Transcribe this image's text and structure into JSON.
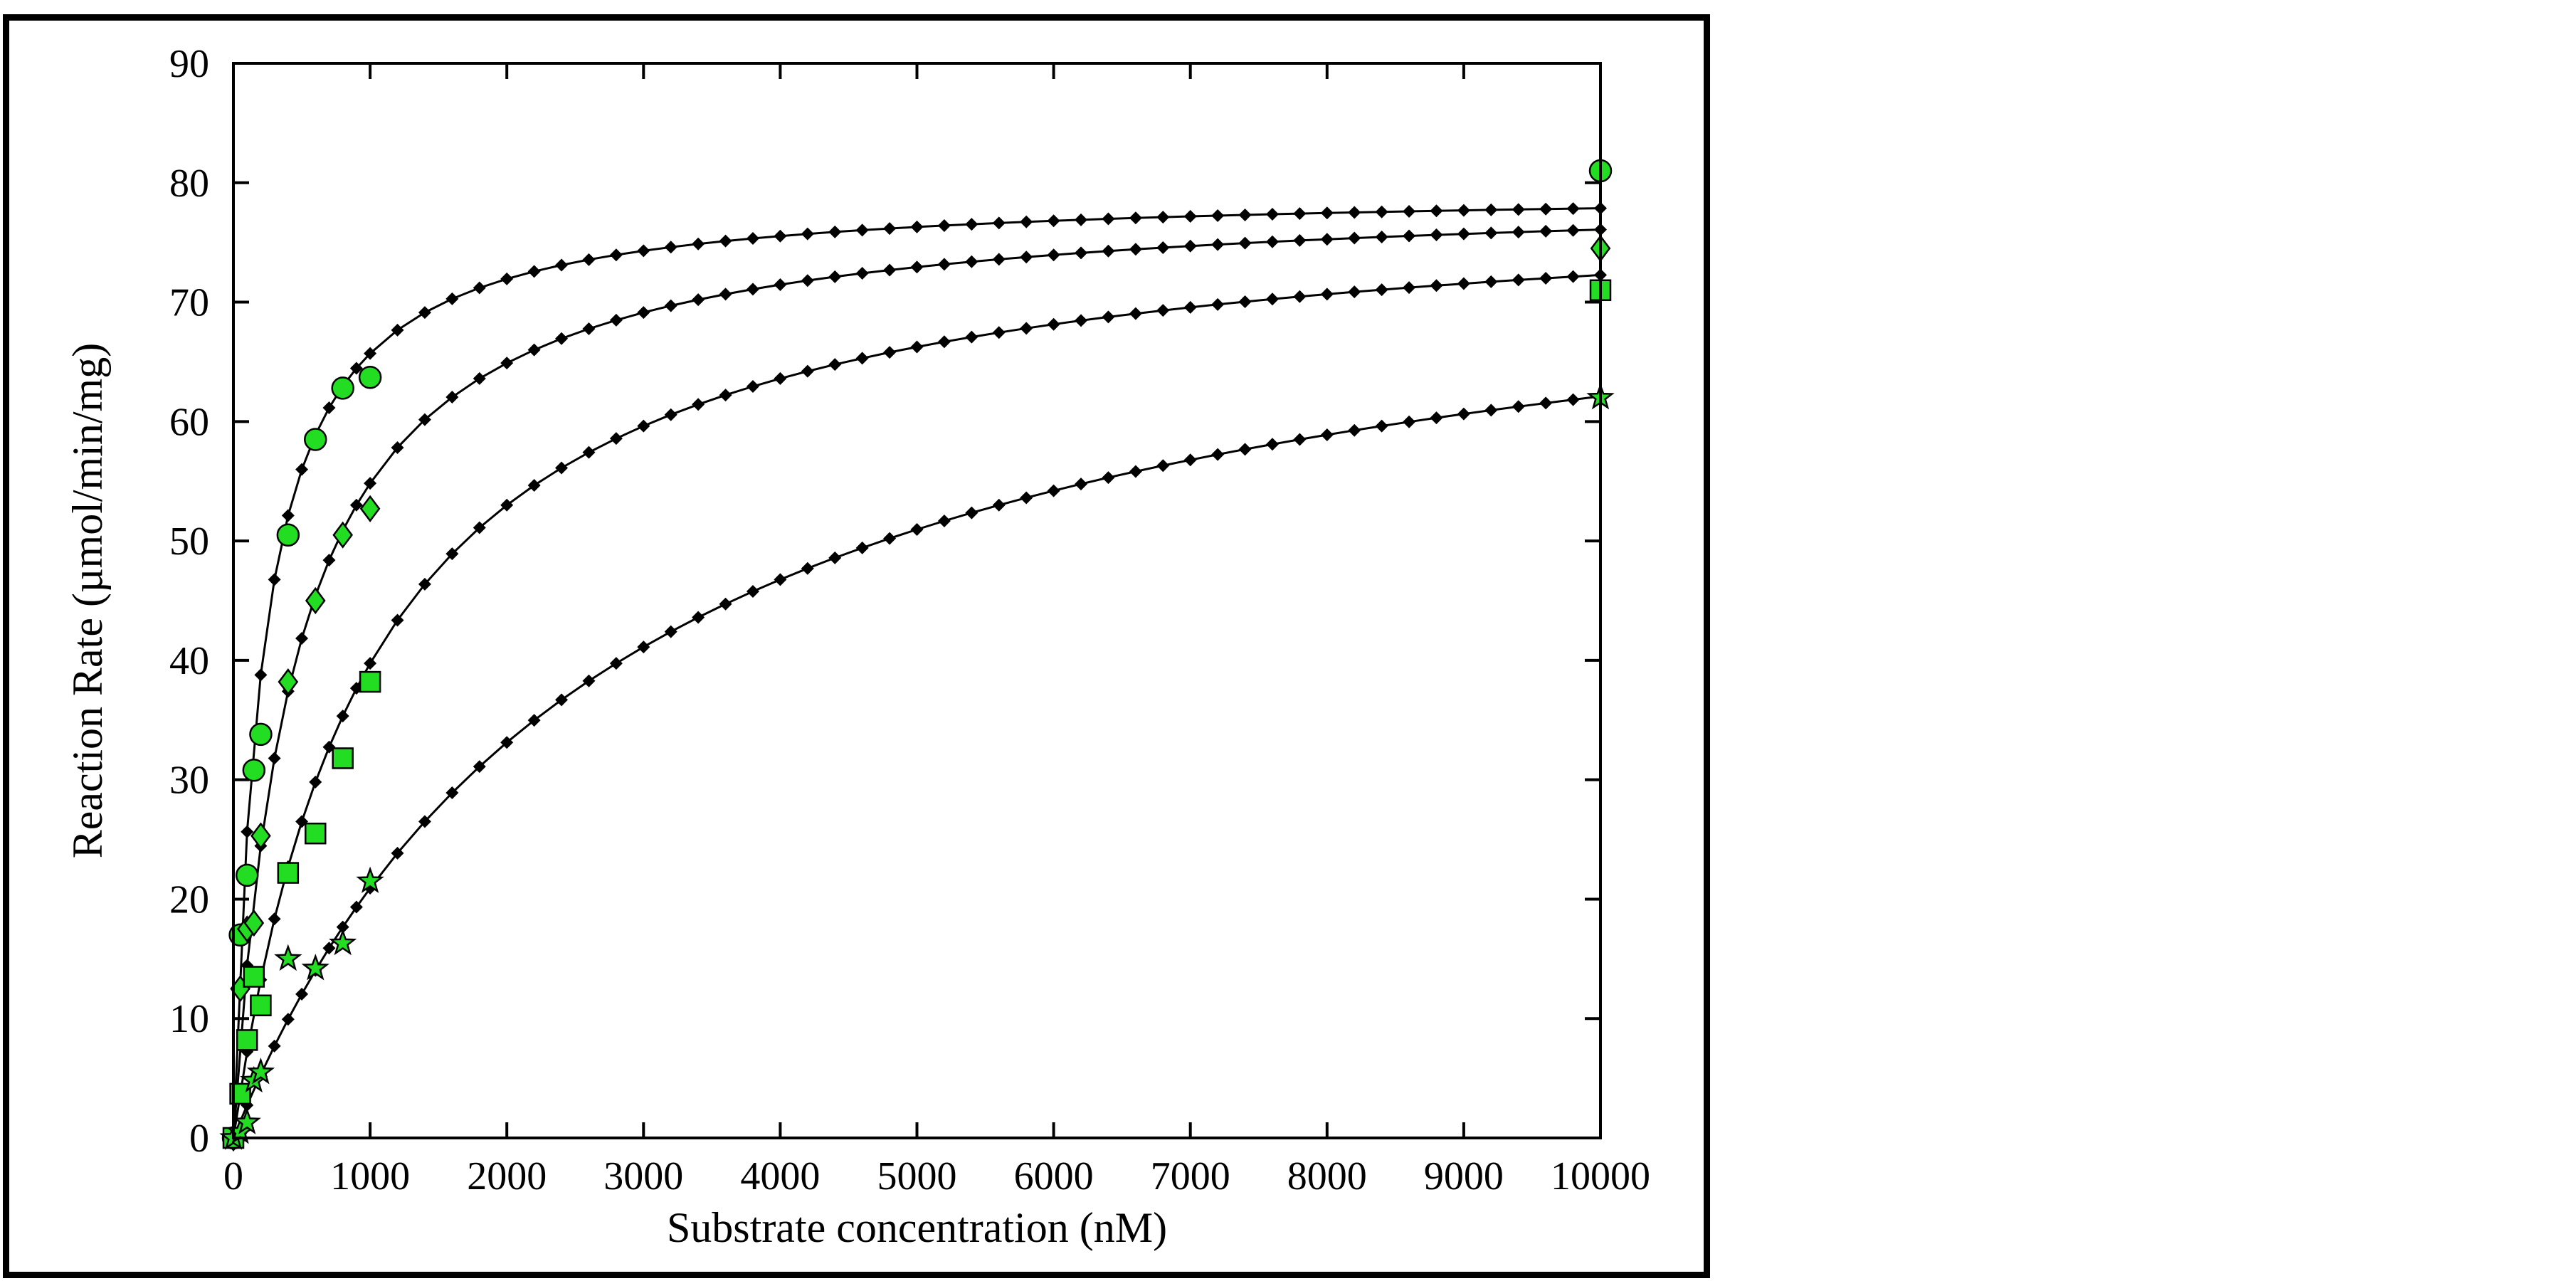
{
  "chart_data": {
    "type": "scatter",
    "title": "",
    "xlabel": "Substrate concentration (nM)",
    "ylabel": "Reaction Rate (µmol/min/mg)",
    "xlim": [
      0,
      10000
    ],
    "ylim": [
      0,
      90
    ],
    "xticks": [
      0,
      1000,
      2000,
      3000,
      4000,
      5000,
      6000,
      7000,
      8000,
      9000,
      10000
    ],
    "yticks": [
      0,
      10,
      20,
      30,
      40,
      50,
      60,
      70,
      80,
      90
    ],
    "grid": false,
    "legend": "none",
    "fit_color": "#000000",
    "marker_color": "#22dd22",
    "series": [
      {
        "marker": "circle",
        "x": [
          0,
          50,
          100,
          150,
          200,
          400,
          600,
          800,
          1000,
          10000
        ],
        "y": [
          0,
          17,
          22,
          30.8,
          33.8,
          50.5,
          58.5,
          62.8,
          63.7,
          81
        ],
        "fit": {
          "vmax": 79.5,
          "km": 210
        }
      },
      {
        "marker": "diamond",
        "x": [
          0,
          50,
          100,
          150,
          200,
          400,
          600,
          800,
          1000,
          10000
        ],
        "y": [
          0,
          12.5,
          17.5,
          18,
          25.3,
          38.2,
          45,
          50.5,
          52.7,
          74.5
        ],
        "fit": {
          "vmax": 79.5,
          "km": 450
        }
      },
      {
        "marker": "square",
        "x": [
          0,
          50,
          100,
          150,
          200,
          400,
          600,
          800,
          1000,
          10000
        ],
        "y": [
          0,
          3.7,
          8.2,
          13.5,
          11.1,
          22.2,
          25.5,
          31.8,
          38.2,
          71
        ],
        "fit": {
          "vmax": 79.5,
          "km": 1000
        }
      },
      {
        "marker": "star",
        "x": [
          0,
          50,
          100,
          150,
          200,
          400,
          600,
          800,
          1000,
          10000
        ],
        "y": [
          0,
          0.5,
          1.3,
          4.8,
          5.5,
          15,
          14.2,
          16.3,
          21.5,
          62
        ],
        "fit": {
          "vmax": 79.5,
          "km": 2800
        }
      }
    ]
  }
}
